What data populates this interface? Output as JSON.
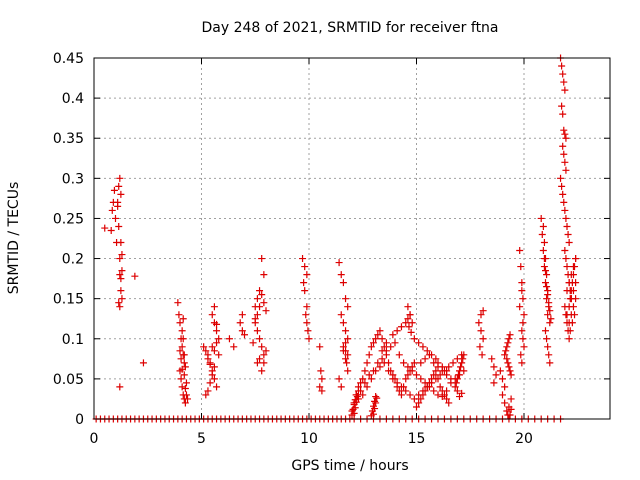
{
  "chart_data": {
    "type": "scatter",
    "title": "Day 248 of 2021, SRMTID for receiver ftna",
    "xlabel": "GPS time / hours",
    "ylabel": "SRMTID / TECUs",
    "xlim": [
      0,
      24
    ],
    "ylim": [
      0,
      0.45
    ],
    "xticks": [
      0,
      5,
      10,
      15,
      20
    ],
    "xtick_labels": [
      "0",
      "5",
      "10",
      "15",
      "20"
    ],
    "yticks": [
      0,
      0.05,
      0.1,
      0.15,
      0.2,
      0.25,
      0.3,
      0.35,
      0.4,
      0.45
    ],
    "ytick_labels": [
      "0",
      "0.05",
      "0.1",
      "0.15",
      "0.2",
      "0.25",
      "0.3",
      "0.35",
      "0.4",
      "0.45"
    ],
    "grid": true,
    "marker": "+",
    "color": "#dd0000",
    "series": [
      {
        "x": [
          0.5,
          0.8,
          0.85,
          0.9,
          0.95,
          1.0,
          1.05,
          1.1,
          1.15,
          1.2,
          1.25,
          1.1,
          1.15,
          1.2,
          1.25,
          1.3,
          1.2,
          1.25,
          1.3,
          1.15,
          1.2,
          1.25,
          1.3,
          1.2,
          1.9,
          2.3,
          3.9,
          3.95,
          4.0,
          4.05,
          4.1,
          4.15,
          4.2,
          4.0,
          4.05,
          4.1,
          4.15,
          4.2,
          4.25,
          4.1,
          4.15,
          4.2,
          4.25,
          4.3,
          4.0,
          4.05,
          4.1,
          4.2,
          4.25,
          4.3,
          4.35,
          4.15,
          5.1,
          5.2,
          5.3,
          5.4,
          5.5,
          5.6,
          5.7,
          5.2,
          5.3,
          5.4,
          5.5,
          5.6,
          5.5,
          5.6,
          5.7,
          5.8,
          5.3,
          5.4,
          5.5,
          5.6,
          5.7,
          5.6,
          5.7,
          5.8,
          6.3,
          6.5,
          6.8,
          6.9,
          7.0,
          6.9,
          7.5,
          7.6,
          7.7,
          7.8,
          7.9,
          8.0,
          7.5,
          7.6,
          7.7,
          7.8,
          7.9,
          7.6,
          7.7,
          7.8,
          7.9,
          8.0,
          7.8,
          7.9,
          7.4,
          7.5,
          7.6,
          7.7,
          9.7,
          9.8,
          9.9,
          9.75,
          9.8,
          9.9,
          9.85,
          9.9,
          9.95,
          10.0,
          10.5,
          10.55,
          10.6,
          10.5,
          10.6,
          11.4,
          11.5,
          11.6,
          11.7,
          11.8,
          11.5,
          11.6,
          11.7,
          11.8,
          11.6,
          11.7,
          11.8,
          11.7,
          11.75,
          11.8,
          11.4,
          11.5,
          11.6,
          11.7,
          12.0,
          12.1,
          12.2,
          12.3,
          12.4,
          12.5,
          12.6,
          12.7,
          12.8,
          12.9,
          13.0,
          13.1,
          13.2,
          13.3,
          13.4,
          13.5,
          13.6,
          13.7,
          13.8,
          13.9,
          14.0,
          14.1,
          14.2,
          14.3,
          14.4,
          14.5,
          14.6,
          14.7,
          14.8,
          14.9,
          12.2,
          12.4,
          12.6,
          12.8,
          13.0,
          13.2,
          13.4,
          13.6,
          13.8,
          14.0,
          14.2,
          14.4,
          14.6,
          14.8,
          15.0,
          15.2,
          15.4,
          15.6,
          15.8,
          16.0,
          16.2,
          16.4,
          16.6,
          16.8,
          17.0,
          17.2,
          12.1,
          12.3,
          12.5,
          12.7,
          12.9,
          13.1,
          13.3,
          13.5,
          13.7,
          13.9,
          14.1,
          14.3,
          14.5,
          14.7,
          14.9,
          15.1,
          15.3,
          15.5,
          15.7,
          15.9,
          16.1,
          16.3,
          16.5,
          16.7,
          16.9,
          17.1,
          12.0,
          12.05,
          12.1,
          12.15,
          12.2,
          12.1,
          12.15,
          12.2,
          12.25,
          12.3,
          12.9,
          12.95,
          13.0,
          13.05,
          13.1,
          13.0,
          13.05,
          13.1,
          13.15,
          13.4,
          13.6,
          13.9,
          14.1,
          14.3,
          14.5,
          14.6,
          14.7,
          14.9,
          15.1,
          15.3,
          15.5,
          15.7,
          15.9,
          16.0,
          16.2,
          16.4,
          14.6,
          14.7,
          14.8,
          14.65,
          14.75,
          15.0,
          15.1,
          15.2,
          15.3,
          15.4,
          15.5,
          15.6,
          15.7,
          15.8,
          15.9,
          16.0,
          16.1,
          16.2,
          16.3,
          16.4,
          16.5,
          15.2,
          15.4,
          15.6,
          15.8,
          16.0,
          16.2,
          16.4,
          16.6,
          16.8,
          16.9,
          17.0,
          17.1,
          17.2,
          16.85,
          16.95,
          17.05,
          17.15,
          16.9,
          17.0,
          17.1,
          17.9,
          18.0,
          18.1,
          18.0,
          18.1,
          17.95,
          18.05,
          18.5,
          18.6,
          18.7,
          18.6,
          18.9,
          19.0,
          19.1,
          19.0,
          19.1,
          19.2,
          19.25,
          19.3,
          19.4,
          19.35,
          19.4,
          19.1,
          19.15,
          19.2,
          19.25,
          19.3,
          19.35,
          19.2,
          19.25,
          19.3,
          19.35,
          19.4,
          19.8,
          19.85,
          19.9,
          19.95,
          20.0,
          19.9,
          19.95,
          20.0,
          19.85,
          19.9,
          19.95,
          19.8,
          19.9,
          20.8,
          20.85,
          20.9,
          20.95,
          21.0,
          21.05,
          21.1,
          20.9,
          20.95,
          21.0,
          21.05,
          21.1,
          21.15,
          21.2,
          21.0,
          21.05,
          21.1,
          21.15,
          21.2,
          20.95,
          21.0,
          21.05,
          21.1,
          21.15,
          21.2,
          21.25,
          21.7,
          21.75,
          21.8,
          21.85,
          21.9,
          21.75,
          21.8,
          21.85,
          21.9,
          21.95,
          21.8,
          21.85,
          21.9,
          21.95,
          21.7,
          21.75,
          21.8,
          21.85,
          21.9,
          21.95,
          22.0,
          22.05,
          22.1,
          21.9,
          21.95,
          22.0,
          22.05,
          22.1,
          22.15,
          22.2,
          21.9,
          21.95,
          22.0,
          22.05,
          22.1,
          22.15,
          22.2,
          22.25,
          22.3,
          22.35,
          22.4,
          22.0,
          22.1,
          22.2,
          22.3,
          22.4,
          22.1,
          22.2,
          22.3,
          22.4,
          22.0,
          22.1,
          22.2,
          22.3,
          22.4,
          22.15,
          22.25,
          22.35
        ],
        "y": [
          0.238,
          0.235,
          0.26,
          0.27,
          0.285,
          0.25,
          0.22,
          0.265,
          0.29,
          0.3,
          0.28,
          0.27,
          0.24,
          0.2,
          0.22,
          0.205,
          0.18,
          0.16,
          0.15,
          0.145,
          0.14,
          0.175,
          0.185,
          0.04,
          0.178,
          0.07,
          0.145,
          0.13,
          0.12,
          0.1,
          0.09,
          0.08,
          0.07,
          0.06,
          0.05,
          0.04,
          0.03,
          0.025,
          0.02,
          0.11,
          0.125,
          0.08,
          0.065,
          0.045,
          0.085,
          0.075,
          0.062,
          0.055,
          0.038,
          0.03,
          0.025,
          0.1,
          0.09,
          0.085,
          0.08,
          0.07,
          0.06,
          0.05,
          0.04,
          0.03,
          0.035,
          0.045,
          0.055,
          0.065,
          0.13,
          0.12,
          0.11,
          0.1,
          0.075,
          0.068,
          0.09,
          0.085,
          0.095,
          0.14,
          0.118,
          0.08,
          0.1,
          0.09,
          0.12,
          0.11,
          0.105,
          0.13,
          0.14,
          0.15,
          0.16,
          0.155,
          0.145,
          0.135,
          0.125,
          0.11,
          0.1,
          0.09,
          0.08,
          0.07,
          0.075,
          0.06,
          0.07,
          0.085,
          0.2,
          0.18,
          0.095,
          0.12,
          0.13,
          0.14,
          0.2,
          0.19,
          0.18,
          0.17,
          0.16,
          0.14,
          0.13,
          0.12,
          0.11,
          0.1,
          0.09,
          0.06,
          0.05,
          0.04,
          0.035,
          0.195,
          0.18,
          0.17,
          0.15,
          0.14,
          0.13,
          0.12,
          0.11,
          0.1,
          0.09,
          0.085,
          0.08,
          0.075,
          0.07,
          0.06,
          0.05,
          0.04,
          0.085,
          0.095,
          0.01,
          0.02,
          0.03,
          0.04,
          0.045,
          0.05,
          0.06,
          0.07,
          0.08,
          0.09,
          0.095,
          0.1,
          0.105,
          0.11,
          0.1,
          0.09,
          0.08,
          0.07,
          0.06,
          0.055,
          0.05,
          0.04,
          0.035,
          0.03,
          0.04,
          0.05,
          0.055,
          0.06,
          0.065,
          0.07,
          0.03,
          0.035,
          0.045,
          0.055,
          0.06,
          0.07,
          0.075,
          0.085,
          0.09,
          0.095,
          0.08,
          0.07,
          0.065,
          0.06,
          0.055,
          0.05,
          0.045,
          0.04,
          0.035,
          0.03,
          0.028,
          0.035,
          0.045,
          0.05,
          0.055,
          0.06,
          0.02,
          0.025,
          0.03,
          0.04,
          0.05,
          0.06,
          0.065,
          0.07,
          0.06,
          0.05,
          0.045,
          0.04,
          0.035,
          0.03,
          0.025,
          0.03,
          0.035,
          0.04,
          0.045,
          0.05,
          0.055,
          0.06,
          0.065,
          0.07,
          0.075,
          0.08,
          0.005,
          0.012,
          0.018,
          0.024,
          0.03,
          0.007,
          0.014,
          0.021,
          0.028,
          0.035,
          0.004,
          0.01,
          0.016,
          0.022,
          0.028,
          0.006,
          0.013,
          0.02,
          0.026,
          0.085,
          0.095,
          0.105,
          0.11,
          0.115,
          0.12,
          0.125,
          0.13,
          0.1,
          0.095,
          0.09,
          0.085,
          0.08,
          0.075,
          0.07,
          0.065,
          0.06,
          0.14,
          0.13,
          0.12,
          0.115,
          0.108,
          0.015,
          0.02,
          0.025,
          0.03,
          0.035,
          0.04,
          0.045,
          0.05,
          0.055,
          0.06,
          0.05,
          0.04,
          0.035,
          0.03,
          0.025,
          0.02,
          0.07,
          0.075,
          0.08,
          0.07,
          0.065,
          0.06,
          0.055,
          0.05,
          0.04,
          0.05,
          0.06,
          0.07,
          0.08,
          0.045,
          0.055,
          0.065,
          0.075,
          0.035,
          0.028,
          0.032,
          0.12,
          0.13,
          0.135,
          0.11,
          0.1,
          0.09,
          0.08,
          0.075,
          0.065,
          0.055,
          0.045,
          0.06,
          0.05,
          0.04,
          0.03,
          0.02,
          0.01,
          0.005,
          0.015,
          0.025,
          0.005,
          0.012,
          0.08,
          0.085,
          0.09,
          0.095,
          0.1,
          0.105,
          0.075,
          0.07,
          0.065,
          0.06,
          0.055,
          0.21,
          0.19,
          0.17,
          0.15,
          0.13,
          0.11,
          0.1,
          0.09,
          0.08,
          0.07,
          0.12,
          0.14,
          0.16,
          0.25,
          0.23,
          0.21,
          0.19,
          0.17,
          0.15,
          0.13,
          0.24,
          0.22,
          0.2,
          0.18,
          0.16,
          0.14,
          0.12,
          0.11,
          0.1,
          0.09,
          0.08,
          0.07,
          0.2,
          0.185,
          0.165,
          0.155,
          0.145,
          0.135,
          0.125,
          0.45,
          0.44,
          0.43,
          0.42,
          0.41,
          0.39,
          0.38,
          0.36,
          0.355,
          0.35,
          0.34,
          0.33,
          0.32,
          0.31,
          0.3,
          0.29,
          0.28,
          0.27,
          0.26,
          0.25,
          0.24,
          0.23,
          0.22,
          0.21,
          0.2,
          0.19,
          0.18,
          0.17,
          0.16,
          0.15,
          0.14,
          0.13,
          0.12,
          0.11,
          0.1,
          0.15,
          0.16,
          0.17,
          0.18,
          0.19,
          0.2,
          0.13,
          0.14,
          0.15,
          0.16,
          0.17,
          0.12,
          0.13,
          0.14,
          0.15,
          0.16,
          0.17,
          0.18,
          0.19,
          0.2,
          0.11,
          0.12,
          0.13
        ]
      },
      {
        "name_hidden": "",
        "x": [
          0.1,
          0.3,
          0.5,
          0.7,
          0.9,
          1.1,
          1.3,
          1.5,
          1.7,
          1.9,
          2.1,
          2.3,
          2.5,
          2.7,
          2.9,
          3.1,
          3.3,
          3.5,
          3.7,
          3.9,
          4.1,
          4.3,
          4.5,
          4.7,
          4.9,
          5.1,
          5.3,
          5.5,
          5.7,
          5.9,
          6.1,
          6.3,
          6.5,
          6.7,
          6.9,
          7.1,
          7.3,
          7.5,
          7.7,
          7.9,
          8.1,
          8.3,
          8.5,
          8.7,
          8.9,
          9.1,
          9.3,
          9.5,
          9.7,
          9.9,
          10.1,
          10.3,
          10.5,
          10.7,
          10.9,
          11.1,
          11.3,
          11.5,
          11.7,
          11.9,
          12.1,
          12.4,
          12.7,
          13.0,
          13.3,
          13.6,
          13.9,
          14.2,
          14.5,
          14.8,
          15.1,
          15.4,
          15.7,
          16.0,
          16.3,
          16.6,
          16.9,
          17.2,
          17.5,
          17.8,
          18.1,
          18.4,
          18.7,
          19.0,
          19.3,
          19.6,
          19.9,
          20.2,
          20.5,
          20.8,
          21.1,
          21.4,
          21.7
        ],
        "y": [
          0,
          0,
          0,
          0,
          0,
          0,
          0,
          0,
          0,
          0,
          0,
          0,
          0,
          0,
          0,
          0,
          0,
          0,
          0,
          0,
          0,
          0,
          0,
          0,
          0,
          0,
          0,
          0,
          0,
          0,
          0,
          0,
          0,
          0,
          0,
          0,
          0,
          0,
          0,
          0,
          0,
          0,
          0,
          0,
          0,
          0,
          0,
          0,
          0,
          0,
          0,
          0,
          0,
          0,
          0,
          0,
          0,
          0,
          0,
          0,
          0,
          0,
          0,
          0,
          0,
          0,
          0,
          0,
          0,
          0,
          0,
          0,
          0,
          0,
          0,
          0,
          0,
          0,
          0,
          0,
          0,
          0,
          0,
          0,
          0,
          0,
          0,
          0,
          0,
          0,
          0,
          0,
          0
        ]
      }
    ]
  }
}
